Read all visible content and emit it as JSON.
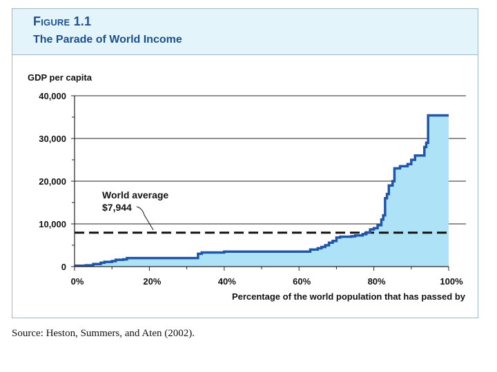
{
  "figure": {
    "label": "Figure 1.1",
    "title": "The Parade of World Income"
  },
  "source": "Source: Heston, Summers, and Aten (2002).",
  "colors": {
    "line": "#1f56a8",
    "fill": "#aee3f7",
    "grid": "#222222",
    "text": "#111111",
    "title": "#1e4f8c"
  },
  "chart_data": {
    "type": "area",
    "ylabel": "GDP per capita",
    "xlabel": "Percentage of the world population that has passed by",
    "xlim": [
      0,
      100
    ],
    "ylim": [
      0,
      40000
    ],
    "x_ticks": [
      0,
      20,
      40,
      60,
      80,
      100
    ],
    "x_tick_labels": [
      "0%",
      "20%",
      "40%",
      "60%",
      "80%",
      "100%"
    ],
    "y_ticks": [
      0,
      10000,
      20000,
      30000,
      40000
    ],
    "y_tick_labels": [
      "0",
      "10,000",
      "20,000",
      "30,000",
      "40,000"
    ],
    "grid": "horizontal",
    "series": [
      {
        "name": "GDP per capita",
        "step": true,
        "points": [
          [
            0,
            200
          ],
          [
            3,
            300
          ],
          [
            5,
            600
          ],
          [
            7,
            900
          ],
          [
            8,
            1100
          ],
          [
            10,
            1300
          ],
          [
            11,
            1600
          ],
          [
            13,
            1700
          ],
          [
            14,
            2000
          ],
          [
            16,
            2000
          ],
          [
            20,
            2000
          ],
          [
            25,
            2000
          ],
          [
            30,
            2000
          ],
          [
            32,
            2000
          ],
          [
            33,
            3000
          ],
          [
            34,
            3300
          ],
          [
            37,
            3300
          ],
          [
            40,
            3500
          ],
          [
            50,
            3500
          ],
          [
            62,
            3500
          ],
          [
            63,
            4000
          ],
          [
            65,
            4300
          ],
          [
            66,
            4600
          ],
          [
            67,
            5000
          ],
          [
            68,
            5600
          ],
          [
            69,
            6000
          ],
          [
            70,
            6800
          ],
          [
            71,
            7000
          ],
          [
            74,
            7100
          ],
          [
            75,
            7300
          ],
          [
            77,
            7600
          ],
          [
            78,
            8000
          ],
          [
            79,
            8700
          ],
          [
            80,
            9000
          ],
          [
            81,
            9700
          ],
          [
            82,
            11000
          ],
          [
            82.5,
            12000
          ],
          [
            83,
            16000
          ],
          [
            83.5,
            17000
          ],
          [
            84,
            19000
          ],
          [
            85,
            20000
          ],
          [
            85.5,
            23000
          ],
          [
            87,
            23500
          ],
          [
            89,
            24000
          ],
          [
            90,
            25000
          ],
          [
            91,
            26000
          ],
          [
            93,
            26000
          ],
          [
            93.5,
            28000
          ],
          [
            94,
            29000
          ],
          [
            94.5,
            35400
          ],
          [
            100,
            35400
          ]
        ]
      }
    ],
    "reference_line": {
      "label": "World average",
      "value_label": "$7,944",
      "y": 7944
    }
  }
}
